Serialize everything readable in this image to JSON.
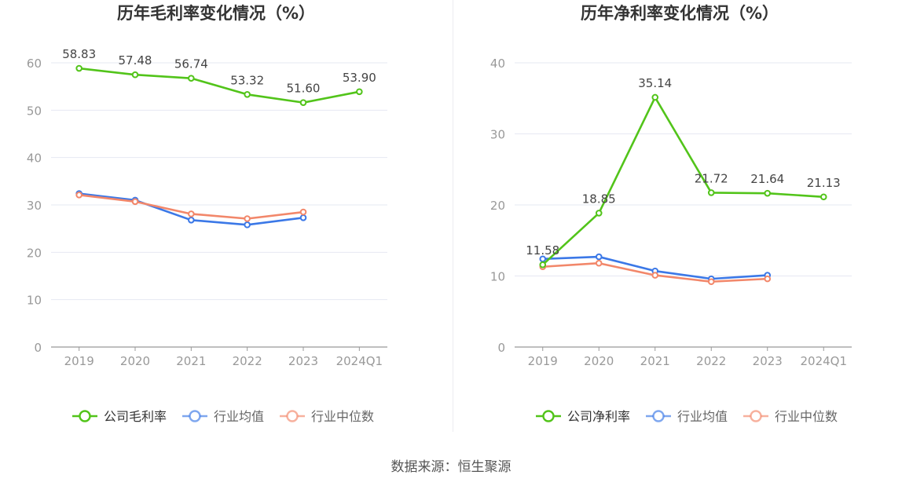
{
  "colors": {
    "company": "#52c41a",
    "industry_avg": "#3b78e7",
    "industry_median": "#f2876a",
    "axis_text": "#999999",
    "grid": "#e6e8f2",
    "axis_line": "#999999",
    "title": "#333333",
    "label": "#444444"
  },
  "chart_data": [
    {
      "type": "line",
      "title": "历年毛利率变化情况（%）",
      "categories": [
        "2019",
        "2020",
        "2021",
        "2022",
        "2023",
        "2024Q1"
      ],
      "ylim": [
        0,
        60
      ],
      "yticks": [
        0,
        10,
        20,
        30,
        40,
        50,
        60
      ],
      "series": [
        {
          "name": "公司毛利率",
          "key": "company",
          "values": [
            58.83,
            57.48,
            56.74,
            53.32,
            51.6,
            53.9
          ],
          "labels": [
            "58.83",
            "57.48",
            "56.74",
            "53.32",
            "51.60",
            "53.90"
          ]
        },
        {
          "name": "行业均值",
          "key": "industry_avg",
          "values": [
            32.4,
            31.0,
            26.8,
            25.8,
            27.3,
            null
          ]
        },
        {
          "name": "行业中位数",
          "key": "industry_median",
          "values": [
            32.1,
            30.7,
            28.1,
            27.1,
            28.5,
            null
          ]
        }
      ],
      "legend": [
        "公司毛利率",
        "行业均值",
        "行业中位数"
      ]
    },
    {
      "type": "line",
      "title": "历年净利率变化情况（%）",
      "categories": [
        "2019",
        "2020",
        "2021",
        "2022",
        "2023",
        "2024Q1"
      ],
      "ylim": [
        0,
        40
      ],
      "yticks": [
        0,
        10,
        20,
        30,
        40
      ],
      "series": [
        {
          "name": "公司净利率",
          "key": "company",
          "values": [
            11.58,
            18.85,
            35.14,
            21.72,
            21.64,
            21.13
          ],
          "labels": [
            "11.58",
            "18.85",
            "35.14",
            "21.72",
            "21.64",
            "21.13"
          ]
        },
        {
          "name": "行业均值",
          "key": "industry_avg",
          "values": [
            12.4,
            12.7,
            10.7,
            9.6,
            10.1,
            null
          ]
        },
        {
          "name": "行业中位数",
          "key": "industry_median",
          "values": [
            11.3,
            11.8,
            10.1,
            9.2,
            9.6,
            null
          ]
        }
      ],
      "legend": [
        "公司净利率",
        "行业均值",
        "行业中位数"
      ]
    }
  ],
  "footer": {
    "source": "数据来源：恒生聚源"
  }
}
